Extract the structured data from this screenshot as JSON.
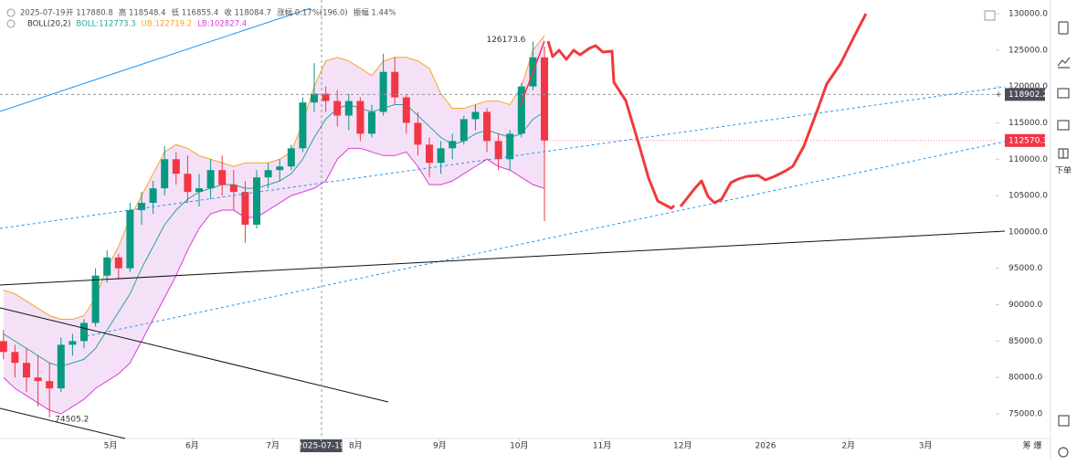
{
  "chart_data": {
    "type": "candlestick",
    "header": {
      "date": "2025-07-19",
      "items": [
        "开 117880.8",
        "高 118548.4",
        "低 116855.4",
        "收 118084.7",
        "涨幅 0.17%(196.0)",
        "振幅 1.44%"
      ]
    },
    "indicator": {
      "name": "BOLL(20,2)",
      "items": [
        "BOLL:112773.3",
        "UB:122719.2",
        "LB:102827.4"
      ]
    },
    "categories": [
      null,
      null,
      null,
      null,
      null,
      null,
      null,
      null,
      null,
      null,
      null,
      null,
      null,
      null,
      null,
      null,
      null,
      null,
      null,
      null,
      null,
      null,
      null,
      null,
      null,
      null,
      null,
      null,
      null,
      null,
      null,
      null,
      null,
      null,
      null,
      null,
      null,
      null,
      null,
      null,
      null,
      null,
      null,
      null,
      null,
      null,
      null,
      null
    ],
    "open": [
      85000,
      83500,
      82000,
      80000,
      79500,
      78500,
      84500,
      85000,
      87500,
      94000,
      96500,
      95000,
      103000,
      104000,
      106000,
      110000,
      108000,
      105500,
      106000,
      108500,
      106500,
      105500,
      101000,
      107500,
      108500,
      109000,
      111500,
      117800,
      119000,
      118000,
      116000,
      118000,
      113500,
      116500,
      122000,
      118500,
      115000,
      112000,
      109500,
      111500,
      112500,
      115500,
      116500,
      112500,
      110000,
      113500,
      120000,
      124000
    ],
    "high": [
      86500,
      84500,
      84000,
      83000,
      82000,
      85500,
      86000,
      88000,
      95000,
      97500,
      97000,
      104000,
      105500,
      107000,
      111800,
      111000,
      110500,
      108000,
      110000,
      110500,
      108500,
      107000,
      108500,
      109500,
      110000,
      112000,
      118500,
      123200,
      120000,
      119500,
      119000,
      118500,
      117500,
      124500,
      124000,
      119000,
      116500,
      113000,
      112500,
      113500,
      116000,
      117500,
      117000,
      113500,
      114000,
      120500,
      126173.6,
      125500
    ],
    "low": [
      82500,
      80000,
      78000,
      76000,
      74505.2,
      78000,
      83000,
      84000,
      87000,
      93000,
      93500,
      94500,
      101000,
      102500,
      105000,
      106500,
      104000,
      103500,
      104500,
      105000,
      103000,
      98500,
      100500,
      106000,
      107000,
      108500,
      111000,
      116500,
      116500,
      114500,
      114000,
      112500,
      113000,
      116000,
      117500,
      113500,
      110500,
      107500,
      108000,
      110000,
      112000,
      114000,
      111000,
      108500,
      108500,
      113000,
      119500,
      101500
    ],
    "close": [
      83500,
      82000,
      80000,
      79500,
      78500,
      84500,
      85000,
      87500,
      94000,
      96500,
      95000,
      103000,
      104000,
      106000,
      110000,
      108000,
      105500,
      106000,
      108500,
      106500,
      105500,
      101000,
      107500,
      108500,
      109000,
      111500,
      117800,
      119000,
      118000,
      116000,
      118000,
      113500,
      116500,
      122000,
      118500,
      115000,
      112000,
      109500,
      111500,
      112500,
      115500,
      116500,
      112500,
      110000,
      113500,
      120000,
      124000,
      112570.3
    ],
    "up_color": "#089981",
    "down_color": "#f23645",
    "bollinger": {
      "upper": [
        92000,
        91500,
        90500,
        89500,
        88500,
        88000,
        88000,
        88500,
        91000,
        95000,
        98000,
        102000,
        105000,
        108000,
        111000,
        112000,
        111500,
        110500,
        110000,
        109500,
        109000,
        109500,
        109500,
        109500,
        110000,
        111000,
        115000,
        120000,
        123500,
        124000,
        123500,
        122500,
        121500,
        123500,
        124000,
        124000,
        123500,
        122500,
        119000,
        117000,
        117000,
        117500,
        118000,
        118000,
        117500,
        120000,
        125000,
        127000
      ],
      "middle": [
        86000,
        85000,
        84000,
        83000,
        82000,
        81500,
        82000,
        82500,
        84000,
        86500,
        89000,
        91500,
        95000,
        98000,
        101000,
        103000,
        104500,
        105500,
        106000,
        106500,
        106500,
        106000,
        106000,
        106500,
        107000,
        108000,
        110000,
        113000,
        115500,
        117000,
        117500,
        117000,
        116500,
        117000,
        117500,
        117500,
        116000,
        114500,
        113000,
        112000,
        112500,
        113500,
        114000,
        113500,
        113000,
        113500,
        115500,
        116500
      ],
      "lower": [
        80000,
        78500,
        77500,
        76500,
        75500,
        75000,
        76000,
        77000,
        78500,
        79500,
        80500,
        82000,
        85000,
        88000,
        91000,
        94000,
        97500,
        100500,
        102500,
        103000,
        103000,
        102000,
        102000,
        103000,
        104000,
        105000,
        105500,
        106000,
        107000,
        110000,
        111500,
        111500,
        111000,
        110500,
        110500,
        111000,
        109000,
        106500,
        106500,
        107000,
        108000,
        109000,
        110000,
        109000,
        108500,
        107500,
        106500,
        106000
      ],
      "upper_color": "#f5a623",
      "middle_color": "#26a69a",
      "lower_color": "#d63dd6",
      "fill": "#f3d9f5"
    },
    "xlim": [
      -0.3,
      86.2
    ],
    "xticks": [
      {
        "value": 9.3,
        "label": "5月"
      },
      {
        "value": 16.4,
        "label": "6月"
      },
      {
        "value": 23.4,
        "label": "7月"
      },
      {
        "value": 27.6,
        "label": "2025-07-19"
      },
      {
        "value": 30.6,
        "label": "8月"
      },
      {
        "value": 37.9,
        "label": "9月"
      },
      {
        "value": 44.8,
        "label": "10月"
      },
      {
        "value": 52,
        "label": "11月"
      },
      {
        "value": 59,
        "label": "12月"
      },
      {
        "value": 66.2,
        "label": "2026"
      },
      {
        "value": 73.4,
        "label": "2月"
      },
      {
        "value": 80.1,
        "label": "3月"
      }
    ],
    "ylim": [
      72000,
      130500
    ],
    "yticks": [
      {
        "value": 75000,
        "label": "75000.0"
      },
      {
        "value": 80000,
        "label": "80000.0"
      },
      {
        "value": 85000,
        "label": "85000.0"
      },
      {
        "value": 90000,
        "label": "90000.0"
      },
      {
        "value": 95000,
        "label": "95000.0"
      },
      {
        "value": 100000,
        "label": "100000.0"
      },
      {
        "value": 105000,
        "label": "105000.0"
      },
      {
        "value": 110000,
        "label": "110000.0"
      },
      {
        "value": 115000,
        "label": "115000.0"
      },
      {
        "value": 120000,
        "label": "120000.0"
      },
      {
        "value": 125000,
        "label": "125000.0"
      },
      {
        "value": 130000,
        "label": "130000.0"
      }
    ],
    "crosshair_price": 118902.2
  },
  "toolbar": {
    "order_button": "下单",
    "axis_corner": "筹 爆"
  }
}
